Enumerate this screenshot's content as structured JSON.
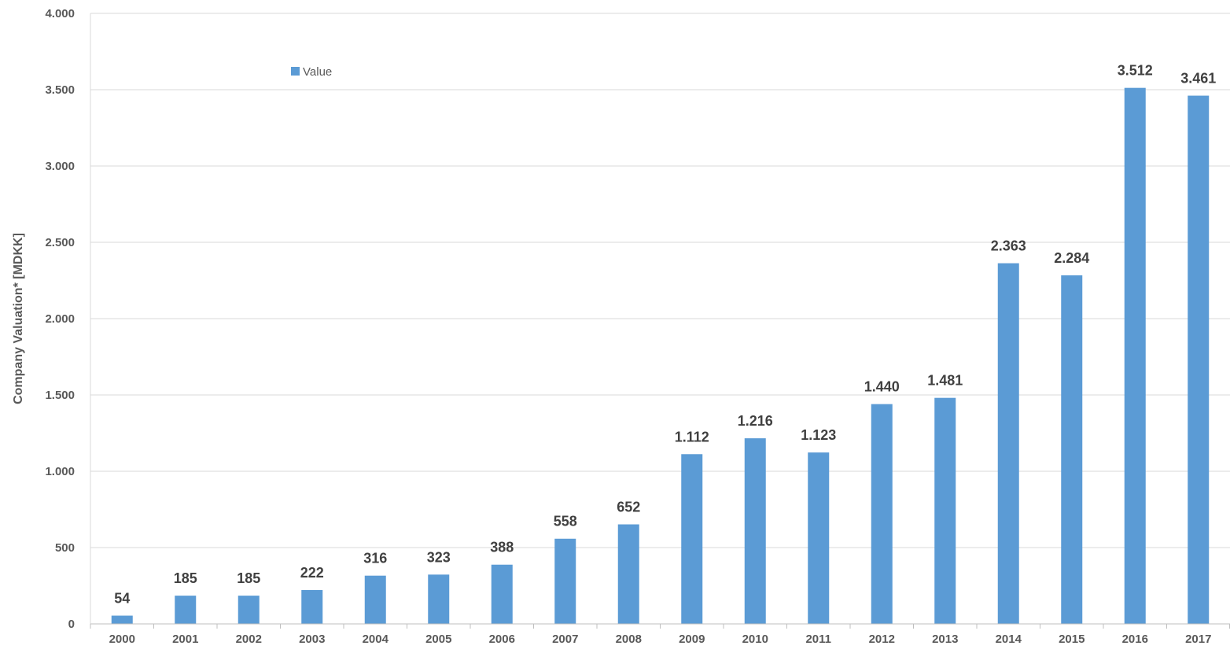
{
  "chart_data": {
    "type": "bar",
    "categories": [
      "2000",
      "2001",
      "2002",
      "2003",
      "2004",
      "2005",
      "2006",
      "2007",
      "2008",
      "2009",
      "2010",
      "2011",
      "2012",
      "2013",
      "2014",
      "2015",
      "2016",
      "2017"
    ],
    "series": [
      {
        "name": "Value",
        "values": [
          54,
          185,
          185,
          222,
          316,
          323,
          388,
          558,
          652,
          1112,
          1216,
          1123,
          1440,
          1481,
          2363,
          2284,
          3512,
          3461
        ],
        "labels": [
          "54",
          "185",
          "185",
          "222",
          "316",
          "323",
          "388",
          "558",
          "652",
          "1.112",
          "1.216",
          "1.123",
          "1.440",
          "1.481",
          "2.363",
          "2.284",
          "3.512",
          "3.461"
        ]
      }
    ],
    "ylabel": "Company Valuation* [MDKK]",
    "xlabel": "",
    "ylim": [
      0,
      4000
    ],
    "yticks": [
      {
        "value": 0,
        "label": "0"
      },
      {
        "value": 500,
        "label": "500"
      },
      {
        "value": 1000,
        "label": "1.000"
      },
      {
        "value": 1500,
        "label": "1.500"
      },
      {
        "value": 2000,
        "label": "2.000"
      },
      {
        "value": 2500,
        "label": "2.500"
      },
      {
        "value": 3000,
        "label": "3.000"
      },
      {
        "value": 3500,
        "label": "3.500"
      },
      {
        "value": 4000,
        "label": "4.000"
      }
    ],
    "grid": true,
    "legend_position": "top-left",
    "colors": {
      "bar": "#5b9bd5",
      "grid": "#d9d9d9",
      "axis": "#bfbfbf",
      "tick_text": "#595959",
      "data_label_text": "#404040"
    }
  }
}
